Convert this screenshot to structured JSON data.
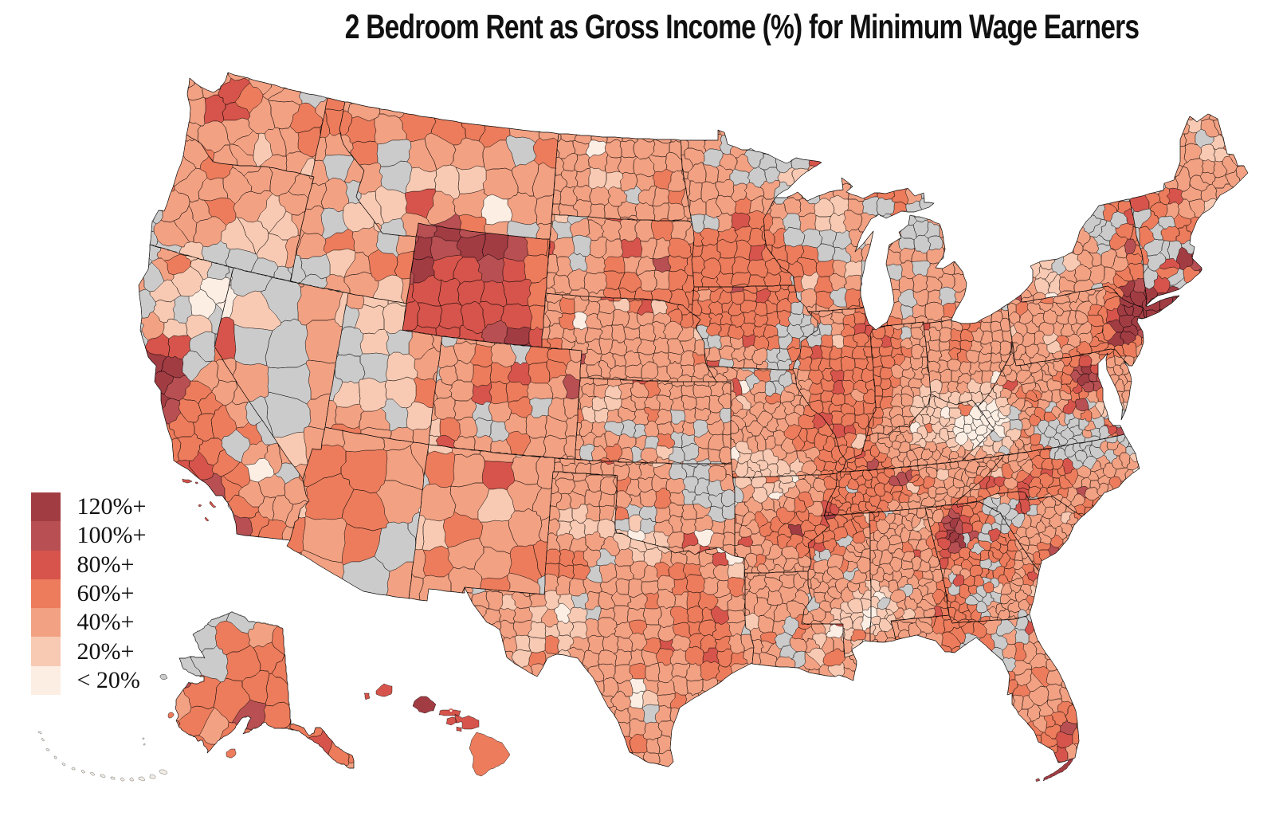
{
  "title": "2 Bedroom Rent as Gross Income (%) for Minimum Wage Earners",
  "legend": {
    "items": [
      {
        "label": "120%+",
        "color": "#a23c43"
      },
      {
        "label": "100%+",
        "color": "#b84f52"
      },
      {
        "label": "80%+",
        "color": "#d6544b"
      },
      {
        "label": "60%+",
        "color": "#ec7c5c"
      },
      {
        "label": "40%+",
        "color": "#f2a183"
      },
      {
        "label": "20%+",
        "color": "#f8cab3"
      },
      {
        "label": "< 20%",
        "color": "#fdeee4"
      }
    ]
  },
  "map": {
    "type": "choropleth",
    "region": "United States counties (incl. Alaska & Hawaii insets)",
    "no_data_color": "#cbcbcb",
    "background": "#ffffff"
  }
}
